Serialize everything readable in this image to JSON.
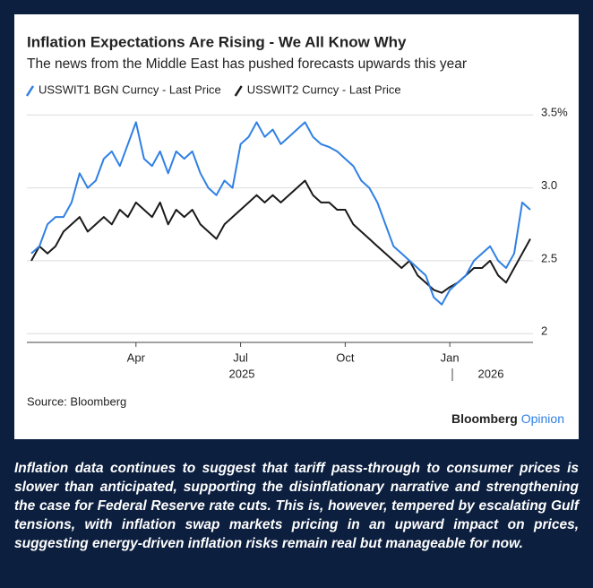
{
  "chart_data": {
    "type": "line",
    "title": "Inflation Expectations Are Rising - We All Know Why",
    "subtitle": "The news from the Middle East has pushed forecasts upwards this year",
    "categories": [
      null,
      null,
      null,
      null,
      null,
      null,
      null,
      null,
      null,
      null,
      null,
      null,
      null,
      "Apr",
      null,
      null,
      null,
      null,
      null,
      null,
      null,
      null,
      null,
      null,
      null,
      null,
      "Jul",
      null,
      null,
      null,
      null,
      null,
      null,
      null,
      null,
      null,
      null,
      null,
      null,
      "Oct",
      null,
      null,
      null,
      null,
      null,
      null,
      null,
      null,
      null,
      null,
      null,
      null,
      "Jan",
      null,
      null,
      null,
      null,
      null,
      null,
      null,
      null,
      null,
      null
    ],
    "x_group_labels": [
      "2025",
      "2026"
    ],
    "series": [
      {
        "name": "USSWIT1 BGN Curncy - Last Price",
        "color": "#2f80e4",
        "values": [
          2.55,
          2.6,
          2.75,
          2.8,
          2.8,
          2.9,
          3.1,
          3.0,
          3.05,
          3.2,
          3.25,
          3.15,
          3.3,
          3.45,
          3.2,
          3.15,
          3.25,
          3.1,
          3.25,
          3.2,
          3.25,
          3.1,
          3.0,
          2.95,
          3.05,
          3.0,
          3.3,
          3.35,
          3.45,
          3.35,
          3.4,
          3.3,
          3.35,
          3.4,
          3.45,
          3.35,
          3.3,
          3.28,
          3.25,
          3.2,
          3.15,
          3.05,
          3.0,
          2.9,
          2.75,
          2.6,
          2.55,
          2.5,
          2.45,
          2.4,
          2.25,
          2.2,
          2.3,
          2.35,
          2.4,
          2.5,
          2.55,
          2.6,
          2.5,
          2.45,
          2.55,
          2.9,
          2.85
        ]
      },
      {
        "name": "USSWIT2 Curncy - Last Price",
        "color": "#1a1a1a",
        "values": [
          2.5,
          2.6,
          2.55,
          2.6,
          2.7,
          2.75,
          2.8,
          2.7,
          2.75,
          2.8,
          2.75,
          2.85,
          2.8,
          2.9,
          2.85,
          2.8,
          2.9,
          2.75,
          2.85,
          2.8,
          2.85,
          2.75,
          2.7,
          2.65,
          2.75,
          2.8,
          2.85,
          2.9,
          2.95,
          2.9,
          2.95,
          2.9,
          2.95,
          3.0,
          3.05,
          2.95,
          2.9,
          2.9,
          2.85,
          2.85,
          2.75,
          2.7,
          2.65,
          2.6,
          2.55,
          2.5,
          2.45,
          2.5,
          2.4,
          2.35,
          2.3,
          2.28,
          2.32,
          2.35,
          2.4,
          2.45,
          2.45,
          2.5,
          2.4,
          2.35,
          2.45,
          2.55,
          2.65
        ]
      }
    ],
    "ylim": [
      1.94,
      3.6
    ],
    "yticks": [
      2.0,
      2.5,
      {
        "value": 3,
        "label": "3.0"
      },
      {
        "value": 3.5,
        "label": "3.5%"
      }
    ],
    "grid": true,
    "source": "Source: Bloomberg"
  },
  "brand": {
    "name": "Bloomberg",
    "section": "Opinion"
  },
  "caption": "Inflation data continues to suggest that tariff pass-through to consumer prices is slower than anticipated, supporting the disinflationary narrative and strengthening the case for Federal Reserve rate cuts. This is, however, tempered by escalating Gulf tensions, with inflation swap markets pricing in an upward impact on prices, suggesting energy-driven inflation risks remain real but manageable for now."
}
